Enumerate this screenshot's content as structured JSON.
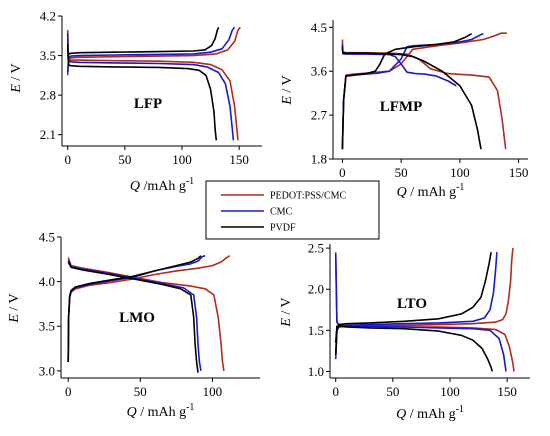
{
  "legend": {
    "entries": [
      {
        "label": "PEDOT:PSS/CMC",
        "color": "#b22a1c"
      },
      {
        "label": "CMC",
        "color": "#1a17d0"
      },
      {
        "label": "PVDF",
        "color": "#000000"
      }
    ],
    "placement": "center"
  },
  "chart_data": [
    {
      "type": "line",
      "panel_label": "LFP",
      "xlabel": "Q /mAh g",
      "xlabel_superscript": "-1",
      "ylabel_italic": "E",
      "ylabel_unit": " / V",
      "xlim": [
        -5,
        170
      ],
      "ylim": [
        1.9,
        4.2
      ],
      "xticks": [
        0,
        50,
        100,
        150
      ],
      "yticks": [
        2.1,
        2.8,
        3.5,
        4.2
      ],
      "ytick_labels": [
        "2.1",
        "2.8",
        "3.5",
        "4.2"
      ],
      "grid": false,
      "series": [
        {
          "name": "PEDOT:PSS/CMC",
          "color": "#b22a1c",
          "curves": [
            {
              "x": [
                0,
                0.5,
                1,
                3,
                10,
                40,
                80,
                110,
                130,
                140,
                146,
                149,
                151
              ],
              "y": [
                3.15,
                3.35,
                3.44,
                3.46,
                3.47,
                3.48,
                3.49,
                3.5,
                3.53,
                3.6,
                3.75,
                3.95,
                4.0
              ]
            },
            {
              "x": [
                0,
                0.3,
                1,
                3,
                10,
                40,
                80,
                110,
                125,
                135,
                142,
                146,
                148,
                149
              ],
              "y": [
                3.95,
                3.6,
                3.43,
                3.42,
                3.42,
                3.41,
                3.4,
                3.38,
                3.34,
                3.25,
                3.05,
                2.6,
                2.2,
                2.0
              ]
            }
          ]
        },
        {
          "name": "CMC",
          "color": "#1a17d0",
          "curves": [
            {
              "x": [
                0,
                0.5,
                1,
                3,
                10,
                40,
                80,
                110,
                125,
                135,
                141,
                144,
                146
              ],
              "y": [
                3.2,
                3.4,
                3.47,
                3.49,
                3.5,
                3.51,
                3.52,
                3.53,
                3.56,
                3.62,
                3.78,
                3.95,
                4.0
              ]
            },
            {
              "x": [
                0,
                0.3,
                1,
                3,
                10,
                40,
                80,
                110,
                122,
                132,
                138,
                142,
                144,
                145
              ],
              "y": [
                3.9,
                3.55,
                3.4,
                3.39,
                3.38,
                3.37,
                3.36,
                3.34,
                3.3,
                3.2,
                3.0,
                2.6,
                2.2,
                2.0
              ]
            }
          ]
        },
        {
          "name": "PVDF",
          "color": "#000000",
          "curves": [
            {
              "x": [
                0,
                0.5,
                1,
                3,
                10,
                40,
                80,
                110,
                120,
                126,
                129,
                131,
                132
              ],
              "y": [
                3.6,
                3.55,
                3.53,
                3.54,
                3.55,
                3.56,
                3.57,
                3.58,
                3.6,
                3.68,
                3.8,
                3.95,
                4.0
              ]
            },
            {
              "x": [
                0,
                0.3,
                1,
                3,
                10,
                40,
                80,
                105,
                115,
                121,
                125,
                128,
                129,
                130
              ],
              "y": [
                3.7,
                3.45,
                3.33,
                3.32,
                3.31,
                3.3,
                3.29,
                3.27,
                3.24,
                3.15,
                2.9,
                2.5,
                2.2,
                2.0
              ]
            }
          ]
        }
      ]
    },
    {
      "type": "line",
      "panel_label": "LFMP",
      "xlabel": "Q / mAh g",
      "xlabel_superscript": "-1",
      "ylabel_italic": "E",
      "ylabel_unit": " / V",
      "xlim": [
        -8,
        158
      ],
      "ylim": [
        1.8,
        4.65
      ],
      "xticks": [
        0,
        50,
        100,
        150
      ],
      "yticks": [
        1.8,
        2.7,
        3.6,
        4.5
      ],
      "ytick_labels": [
        "1.8",
        "2.7",
        "3.6",
        "4.5"
      ],
      "grid": false,
      "series": [
        {
          "name": "PEDOT:PSS/CMC",
          "color": "#b22a1c",
          "curves": [
            {
              "x": [
                0,
                1,
                3,
                10,
                20,
                30,
                40,
                50,
                60,
                80,
                100,
                120,
                130,
                135,
                140
              ],
              "y": [
                2.0,
                3.0,
                3.52,
                3.54,
                3.56,
                3.58,
                3.6,
                3.75,
                4.05,
                4.12,
                4.18,
                4.25,
                4.33,
                4.38,
                4.38
              ]
            },
            {
              "x": [
                0,
                0.3,
                3,
                20,
                40,
                55,
                65,
                75,
                90,
                110,
                125,
                132,
                136,
                139
              ],
              "y": [
                4.25,
                4.0,
                3.98,
                3.98,
                3.97,
                3.95,
                3.85,
                3.65,
                3.55,
                3.52,
                3.48,
                3.2,
                2.6,
                2.0
              ]
            }
          ]
        },
        {
          "name": "CMC",
          "color": "#1a17d0",
          "curves": [
            {
              "x": [
                0,
                1,
                3,
                10,
                20,
                30,
                40,
                50,
                55,
                60,
                80,
                100,
                110,
                118,
                120
              ],
              "y": [
                2.0,
                3.0,
                3.5,
                3.52,
                3.54,
                3.56,
                3.6,
                3.85,
                4.1,
                4.12,
                4.15,
                4.2,
                4.25,
                4.35,
                4.37
              ]
            },
            {
              "x": [
                0,
                0.3,
                3,
                20,
                40,
                45,
                50,
                55,
                62,
                70,
                80,
                90,
                97
              ],
              "y": [
                4.15,
                3.96,
                3.95,
                3.95,
                3.94,
                3.9,
                3.75,
                3.58,
                3.55,
                3.54,
                3.5,
                3.4,
                3.3
              ]
            }
          ]
        },
        {
          "name": "PVDF",
          "color": "#000000",
          "curves": [
            {
              "x": [
                0,
                1,
                3,
                10,
                20,
                28,
                32,
                36,
                45,
                60,
                80,
                95,
                105,
                110
              ],
              "y": [
                2.0,
                3.0,
                3.5,
                3.52,
                3.55,
                3.6,
                3.75,
                3.95,
                4.05,
                4.1,
                4.15,
                4.2,
                4.3,
                4.37
              ]
            },
            {
              "x": [
                0,
                0.3,
                3,
                20,
                35,
                50,
                60,
                70,
                85,
                100,
                110,
                115,
                118
              ],
              "y": [
                4.1,
                3.98,
                3.97,
                3.97,
                3.96,
                3.94,
                3.9,
                3.8,
                3.6,
                3.3,
                2.9,
                2.4,
                2.0
              ]
            }
          ]
        }
      ]
    },
    {
      "type": "line",
      "panel_label": "LMO",
      "xlabel": "Q / mAh g",
      "xlabel_superscript": "-1",
      "ylabel_italic": "E",
      "ylabel_unit": " / V",
      "xlim": [
        -5,
        133
      ],
      "ylim": [
        2.92,
        4.5
      ],
      "xticks": [
        0,
        50,
        100
      ],
      "yticks": [
        3.0,
        3.5,
        4.0,
        4.5
      ],
      "ytick_labels": [
        "3.0",
        "3.5",
        "4.0",
        "4.5"
      ],
      "grid": false,
      "series": [
        {
          "name": "PEDOT:PSS/CMC",
          "color": "#b22a1c",
          "curves": [
            {
              "x": [
                0,
                0.3,
                1,
                2,
                5,
                15,
                30,
                45,
                60,
                75,
                90,
                100,
                106,
                110,
                112
              ],
              "y": [
                3.1,
                3.6,
                3.82,
                3.88,
                3.92,
                3.96,
                3.99,
                4.03,
                4.08,
                4.12,
                4.15,
                4.18,
                4.22,
                4.27,
                4.29
              ]
            },
            {
              "x": [
                0,
                2,
                10,
                25,
                45,
                65,
                85,
                95,
                101,
                104,
                106,
                107,
                108
              ],
              "y": [
                4.27,
                4.18,
                4.15,
                4.11,
                4.05,
                3.99,
                3.95,
                3.92,
                3.85,
                3.6,
                3.3,
                3.1,
                3.0
              ]
            }
          ]
        },
        {
          "name": "CMC",
          "color": "#1a17d0",
          "curves": [
            {
              "x": [
                0,
                0.3,
                1,
                2,
                5,
                15,
                30,
                45,
                60,
                75,
                85,
                90,
                93,
                95
              ],
              "y": [
                3.1,
                3.6,
                3.83,
                3.89,
                3.93,
                3.97,
                4.01,
                4.05,
                4.12,
                4.17,
                4.2,
                4.23,
                4.28,
                4.29
              ]
            },
            {
              "x": [
                0,
                2,
                10,
                25,
                45,
                65,
                80,
                87,
                89,
                90,
                91,
                92
              ],
              "y": [
                4.24,
                4.17,
                4.14,
                4.1,
                4.04,
                3.98,
                3.93,
                3.85,
                3.6,
                3.3,
                3.1,
                3.0
              ]
            }
          ]
        },
        {
          "name": "PVDF",
          "color": "#000000",
          "curves": [
            {
              "x": [
                0,
                0.3,
                1,
                2,
                5,
                15,
                30,
                45,
                60,
                75,
                85,
                90,
                92
              ],
              "y": [
                3.1,
                3.6,
                3.84,
                3.9,
                3.94,
                3.98,
                4.02,
                4.06,
                4.12,
                4.18,
                4.22,
                4.26,
                4.29
              ]
            },
            {
              "x": [
                0,
                2,
                10,
                25,
                45,
                65,
                78,
                85,
                87,
                88,
                89,
                90
              ],
              "y": [
                4.22,
                4.16,
                4.13,
                4.09,
                4.03,
                3.97,
                3.92,
                3.85,
                3.6,
                3.3,
                3.1,
                2.98
              ]
            }
          ]
        }
      ]
    },
    {
      "type": "line",
      "panel_label": "LTO",
      "xlabel": "Q / mAh g",
      "xlabel_superscript": "-1",
      "ylabel_italic": "E",
      "ylabel_unit": " / V",
      "xlim": [
        -5,
        170
      ],
      "ylim": [
        0.92,
        2.55
      ],
      "xticks": [
        0,
        50,
        100,
        150
      ],
      "yticks": [
        1.0,
        1.5,
        2.0,
        2.5
      ],
      "ytick_labels": [
        "1.0",
        "1.5",
        "2.0",
        "2.5"
      ],
      "grid": false,
      "series": [
        {
          "name": "PEDOT:PSS/CMC",
          "color": "#b22a1c",
          "curves": [
            {
              "x": [
                0,
                1,
                3,
                10,
                30,
                60,
                90,
                120,
                140,
                146,
                149,
                151,
                153,
                154,
                155
              ],
              "y": [
                1.2,
                1.5,
                1.54,
                1.55,
                1.56,
                1.56,
                1.57,
                1.58,
                1.6,
                1.63,
                1.7,
                1.85,
                2.1,
                2.35,
                2.5
              ]
            },
            {
              "x": [
                0,
                1,
                3,
                10,
                30,
                60,
                90,
                120,
                140,
                148,
                152,
                155,
                156
              ],
              "y": [
                2.45,
                1.6,
                1.56,
                1.55,
                1.55,
                1.54,
                1.54,
                1.53,
                1.51,
                1.45,
                1.3,
                1.1,
                1.0
              ]
            }
          ]
        },
        {
          "name": "CMC",
          "color": "#1a17d0",
          "curves": [
            {
              "x": [
                0,
                1,
                3,
                10,
                30,
                60,
                90,
                120,
                130,
                135,
                138,
                140,
                141
              ],
              "y": [
                1.15,
                1.5,
                1.55,
                1.56,
                1.57,
                1.58,
                1.59,
                1.61,
                1.65,
                1.75,
                1.95,
                2.25,
                2.45
              ]
            },
            {
              "x": [
                0,
                1,
                3,
                10,
                30,
                60,
                90,
                120,
                135,
                143,
                147,
                149
              ],
              "y": [
                2.43,
                1.6,
                1.56,
                1.55,
                1.55,
                1.54,
                1.53,
                1.52,
                1.5,
                1.4,
                1.2,
                1.0
              ]
            }
          ]
        },
        {
          "name": "PVDF",
          "color": "#000000",
          "curves": [
            {
              "x": [
                0,
                1,
                3,
                10,
                30,
                60,
                90,
                110,
                120,
                127,
                131,
                134,
                136
              ],
              "y": [
                1.2,
                1.5,
                1.57,
                1.58,
                1.59,
                1.61,
                1.64,
                1.7,
                1.78,
                1.9,
                2.1,
                2.3,
                2.45
              ]
            },
            {
              "x": [
                0,
                1,
                3,
                10,
                30,
                60,
                90,
                110,
                120,
                128,
                133,
                136,
                137
              ],
              "y": [
                1.35,
                1.55,
                1.55,
                1.54,
                1.53,
                1.52,
                1.49,
                1.44,
                1.38,
                1.28,
                1.15,
                1.05,
                1.0
              ]
            }
          ]
        }
      ]
    }
  ]
}
